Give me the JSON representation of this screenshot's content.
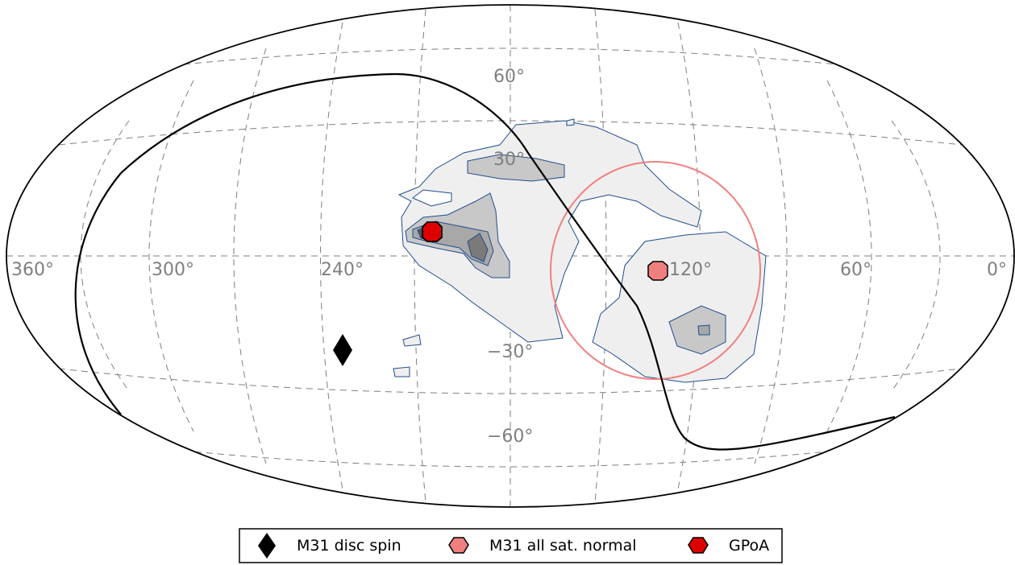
{
  "chart_data": {
    "type": "scatter",
    "projection": "hammer-aitoff (all-sky)",
    "grid": true,
    "longitude_ticks": [
      "360°",
      "300°",
      "240°",
      "120°",
      "60°",
      "0°"
    ],
    "latitude_ticks": [
      "60°",
      "30°",
      "−30°",
      "−60°"
    ],
    "legend_placement": "bottom-center",
    "series": [
      {
        "name": "M31 disc spin",
        "marker": "diamond",
        "color": "#000000",
        "lon": 240,
        "lat": -30
      },
      {
        "name": "M31 all sat. normal",
        "marker": "hexagon",
        "color": "#f08080",
        "lon": 128,
        "lat": -5
      },
      {
        "name": "GPoA",
        "marker": "hexagon",
        "color": "#dd0000",
        "lon": 205,
        "lat": 8
      }
    ],
    "density_contours": "filled grey probability contours around the plane normals",
    "colors": {
      "grid": "#7f7f7f",
      "contour_edge": "#1f4e8c",
      "circle": "#f08080"
    }
  },
  "legend": {
    "items": [
      {
        "label": "M31 disc spin"
      },
      {
        "label": "M31 all sat. normal"
      },
      {
        "label": "GPoA"
      }
    ]
  }
}
